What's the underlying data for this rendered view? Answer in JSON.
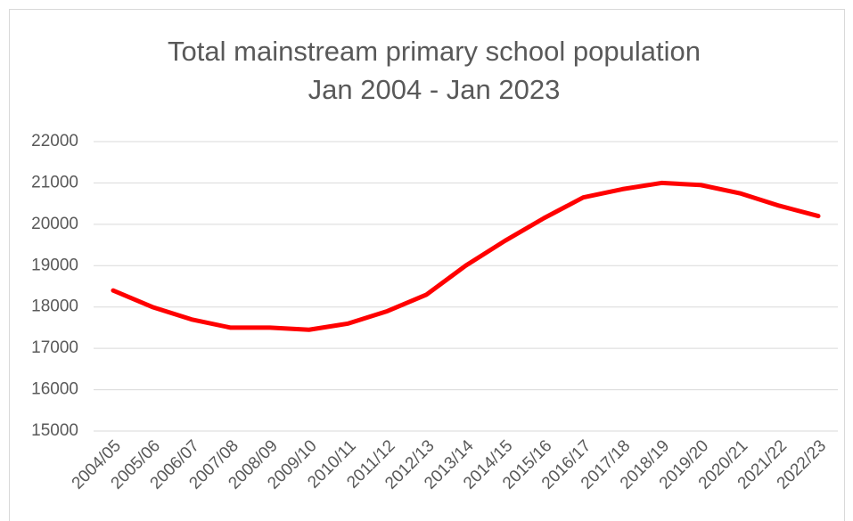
{
  "chart_data": {
    "type": "line",
    "title": "Total mainstream primary school population",
    "subtitle": "Jan 2004 - Jan 2023",
    "categories": [
      "2004/05",
      "2005/06",
      "2006/07",
      "2007/08",
      "2008/09",
      "2009/10",
      "2010/11",
      "2011/12",
      "2012/13",
      "2013/14",
      "2014/15",
      "2015/16",
      "2016/17",
      "2017/18",
      "2018/19",
      "2019/20",
      "2020/21",
      "2021/22",
      "2022/23"
    ],
    "series": [
      {
        "name": "Total mainstream primary school population",
        "color": "#ff0000",
        "values": [
          18400,
          18000,
          17700,
          17500,
          17500,
          17450,
          17600,
          17900,
          18300,
          19000,
          19600,
          20150,
          20650,
          20850,
          21000,
          20950,
          20750,
          20450,
          20200
        ]
      }
    ],
    "ylim": [
      15000,
      22000
    ],
    "yticks": [
      15000,
      16000,
      17000,
      18000,
      19000,
      20000,
      21000,
      22000
    ],
    "grid": true
  }
}
